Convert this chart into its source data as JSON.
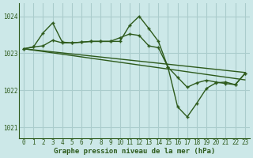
{
  "xlabel": "Graphe pression niveau de la mer (hPa)",
  "bg_color": "#cce8e8",
  "grid_color": "#aacccc",
  "line_color": "#2d5a1b",
  "ylim": [
    1020.7,
    1024.35
  ],
  "xlim": [
    -0.5,
    23.5
  ],
  "yticks": [
    1021,
    1022,
    1023,
    1024
  ],
  "xticks": [
    0,
    1,
    2,
    3,
    4,
    5,
    6,
    7,
    8,
    9,
    10,
    11,
    12,
    13,
    14,
    15,
    16,
    17,
    18,
    19,
    20,
    21,
    22,
    23
  ],
  "series": [
    {
      "comment": "straight diagonal trend line - no markers",
      "x": [
        0,
        23
      ],
      "y": [
        1023.12,
        1022.48
      ],
      "marker": false,
      "linewidth": 1.0
    },
    {
      "comment": "second straight line slightly steeper - no markers",
      "x": [
        0,
        23
      ],
      "y": [
        1023.12,
        1022.28
      ],
      "marker": false,
      "linewidth": 1.0
    },
    {
      "comment": "volatile line with + markers - big peak and dip",
      "x": [
        0,
        1,
        2,
        3,
        4,
        5,
        6,
        7,
        8,
        9,
        10,
        11,
        12,
        13,
        14,
        15,
        16,
        17,
        18,
        19,
        20,
        21,
        22,
        23
      ],
      "y": [
        1023.12,
        1023.17,
        1023.55,
        1023.82,
        1023.3,
        1023.28,
        1023.3,
        1023.32,
        1023.32,
        1023.32,
        1023.32,
        1023.75,
        1024.0,
        1023.67,
        1023.32,
        1022.62,
        1021.55,
        1021.28,
        1021.65,
        1022.05,
        1022.2,
        1022.22,
        1022.15,
        1022.45
      ],
      "marker": true,
      "linewidth": 1.0
    },
    {
      "comment": "smoother line with + markers",
      "x": [
        0,
        1,
        2,
        3,
        4,
        5,
        6,
        7,
        8,
        9,
        10,
        11,
        12,
        13,
        14,
        15,
        16,
        17,
        18,
        19,
        20,
        21,
        22,
        23
      ],
      "y": [
        1023.12,
        1023.17,
        1023.2,
        1023.35,
        1023.28,
        1023.28,
        1023.3,
        1023.32,
        1023.32,
        1023.32,
        1023.42,
        1023.52,
        1023.48,
        1023.2,
        1023.15,
        1022.62,
        1022.35,
        1022.08,
        1022.2,
        1022.27,
        1022.22,
        1022.18,
        1022.15,
        1022.45
      ],
      "marker": true,
      "linewidth": 1.0
    }
  ]
}
